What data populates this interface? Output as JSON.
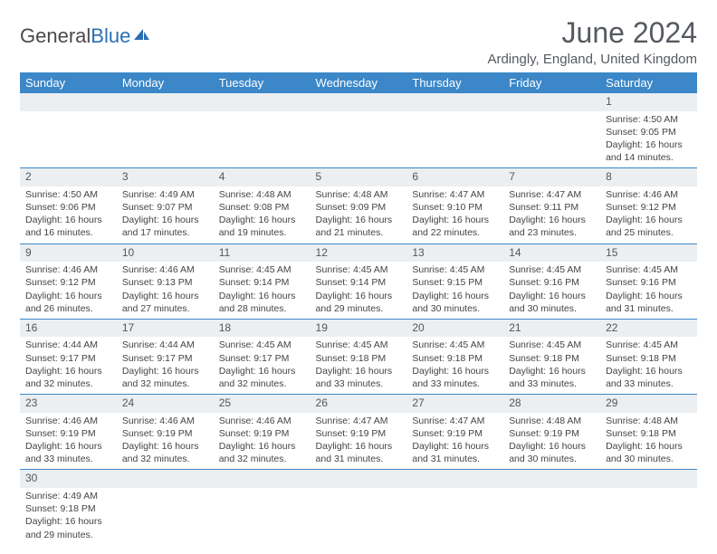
{
  "logo": {
    "text1": "General",
    "text2": "Blue"
  },
  "title": "June 2024",
  "subtitle": "Ardingly, England, United Kingdom",
  "colors": {
    "header_bg": "#3b87c8",
    "header_fg": "#ffffff",
    "daynum_bg": "#eceff1",
    "row_border": "#3b87c8",
    "title_color": "#555a60",
    "logo_gray": "#4a4a4a",
    "logo_blue": "#2b6fb5"
  },
  "weekdays": [
    "Sunday",
    "Monday",
    "Tuesday",
    "Wednesday",
    "Thursday",
    "Friday",
    "Saturday"
  ],
  "weeks": [
    [
      null,
      null,
      null,
      null,
      null,
      null,
      {
        "n": "1",
        "sr": "4:50 AM",
        "ss": "9:05 PM",
        "dl": "16 hours and 14 minutes."
      }
    ],
    [
      {
        "n": "2",
        "sr": "4:50 AM",
        "ss": "9:06 PM",
        "dl": "16 hours and 16 minutes."
      },
      {
        "n": "3",
        "sr": "4:49 AM",
        "ss": "9:07 PM",
        "dl": "16 hours and 17 minutes."
      },
      {
        "n": "4",
        "sr": "4:48 AM",
        "ss": "9:08 PM",
        "dl": "16 hours and 19 minutes."
      },
      {
        "n": "5",
        "sr": "4:48 AM",
        "ss": "9:09 PM",
        "dl": "16 hours and 21 minutes."
      },
      {
        "n": "6",
        "sr": "4:47 AM",
        "ss": "9:10 PM",
        "dl": "16 hours and 22 minutes."
      },
      {
        "n": "7",
        "sr": "4:47 AM",
        "ss": "9:11 PM",
        "dl": "16 hours and 23 minutes."
      },
      {
        "n": "8",
        "sr": "4:46 AM",
        "ss": "9:12 PM",
        "dl": "16 hours and 25 minutes."
      }
    ],
    [
      {
        "n": "9",
        "sr": "4:46 AM",
        "ss": "9:12 PM",
        "dl": "16 hours and 26 minutes."
      },
      {
        "n": "10",
        "sr": "4:46 AM",
        "ss": "9:13 PM",
        "dl": "16 hours and 27 minutes."
      },
      {
        "n": "11",
        "sr": "4:45 AM",
        "ss": "9:14 PM",
        "dl": "16 hours and 28 minutes."
      },
      {
        "n": "12",
        "sr": "4:45 AM",
        "ss": "9:14 PM",
        "dl": "16 hours and 29 minutes."
      },
      {
        "n": "13",
        "sr": "4:45 AM",
        "ss": "9:15 PM",
        "dl": "16 hours and 30 minutes."
      },
      {
        "n": "14",
        "sr": "4:45 AM",
        "ss": "9:16 PM",
        "dl": "16 hours and 30 minutes."
      },
      {
        "n": "15",
        "sr": "4:45 AM",
        "ss": "9:16 PM",
        "dl": "16 hours and 31 minutes."
      }
    ],
    [
      {
        "n": "16",
        "sr": "4:44 AM",
        "ss": "9:17 PM",
        "dl": "16 hours and 32 minutes."
      },
      {
        "n": "17",
        "sr": "4:44 AM",
        "ss": "9:17 PM",
        "dl": "16 hours and 32 minutes."
      },
      {
        "n": "18",
        "sr": "4:45 AM",
        "ss": "9:17 PM",
        "dl": "16 hours and 32 minutes."
      },
      {
        "n": "19",
        "sr": "4:45 AM",
        "ss": "9:18 PM",
        "dl": "16 hours and 33 minutes."
      },
      {
        "n": "20",
        "sr": "4:45 AM",
        "ss": "9:18 PM",
        "dl": "16 hours and 33 minutes."
      },
      {
        "n": "21",
        "sr": "4:45 AM",
        "ss": "9:18 PM",
        "dl": "16 hours and 33 minutes."
      },
      {
        "n": "22",
        "sr": "4:45 AM",
        "ss": "9:18 PM",
        "dl": "16 hours and 33 minutes."
      }
    ],
    [
      {
        "n": "23",
        "sr": "4:46 AM",
        "ss": "9:19 PM",
        "dl": "16 hours and 33 minutes."
      },
      {
        "n": "24",
        "sr": "4:46 AM",
        "ss": "9:19 PM",
        "dl": "16 hours and 32 minutes."
      },
      {
        "n": "25",
        "sr": "4:46 AM",
        "ss": "9:19 PM",
        "dl": "16 hours and 32 minutes."
      },
      {
        "n": "26",
        "sr": "4:47 AM",
        "ss": "9:19 PM",
        "dl": "16 hours and 31 minutes."
      },
      {
        "n": "27",
        "sr": "4:47 AM",
        "ss": "9:19 PM",
        "dl": "16 hours and 31 minutes."
      },
      {
        "n": "28",
        "sr": "4:48 AM",
        "ss": "9:19 PM",
        "dl": "16 hours and 30 minutes."
      },
      {
        "n": "29",
        "sr": "4:48 AM",
        "ss": "9:18 PM",
        "dl": "16 hours and 30 minutes."
      }
    ],
    [
      {
        "n": "30",
        "sr": "4:49 AM",
        "ss": "9:18 PM",
        "dl": "16 hours and 29 minutes."
      },
      null,
      null,
      null,
      null,
      null,
      null
    ]
  ],
  "labels": {
    "sunrise": "Sunrise:",
    "sunset": "Sunset:",
    "daylight": "Daylight:"
  }
}
